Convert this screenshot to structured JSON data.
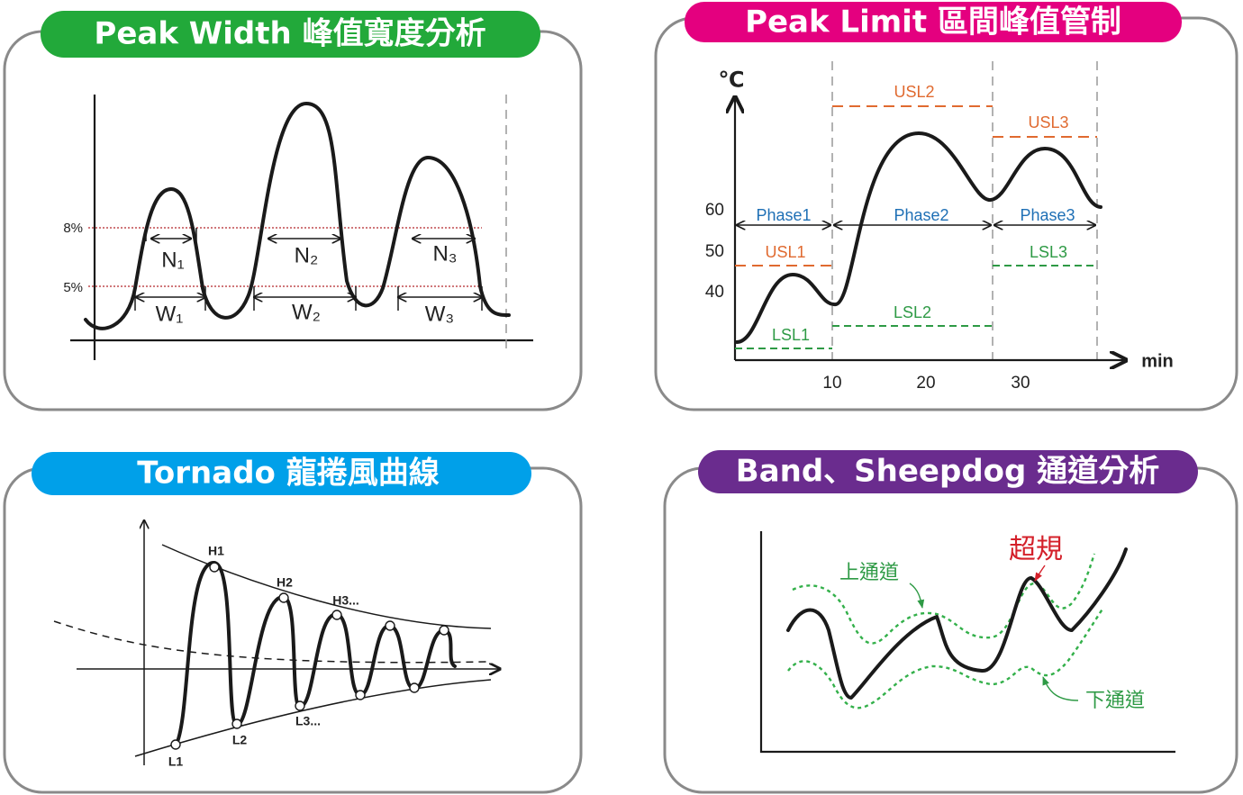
{
  "peak_width": {
    "title": "Peak Width 峰值寬度分析",
    "levels": [
      "8%",
      "5%"
    ],
    "narrow": [
      "N₁",
      "N₂",
      "N₃"
    ],
    "wide": [
      "W₁",
      "W₂",
      "W₃"
    ]
  },
  "peak_limit": {
    "title": "Peak Limit 區間峰值管制",
    "y_unit": "℃",
    "y_ticks": [
      60,
      50,
      40
    ],
    "x_ticks": [
      10,
      20,
      30
    ],
    "x_unit": "min",
    "usl": [
      "USL1",
      "USL2",
      "USL3"
    ],
    "lsl": [
      "LSL1",
      "LSL2",
      "LSL3"
    ],
    "phases": [
      "Phase1",
      "Phase2",
      "Phase3"
    ]
  },
  "tornado": {
    "title": "Tornado 龍捲風曲線",
    "highs": [
      "H1",
      "H2",
      "H3..."
    ],
    "lows": [
      "L1",
      "L2",
      "L3..."
    ]
  },
  "band": {
    "title": "Band、Sheepdog 通道分析",
    "upper": "上通道",
    "lower": "下通道",
    "alert": "超規"
  }
}
